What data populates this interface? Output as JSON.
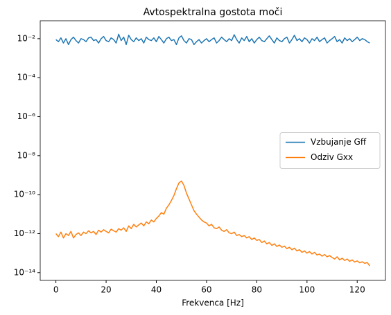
{
  "chart_data": {
    "type": "line",
    "title": "Avtospektralna gostota moči",
    "xlabel": "Frekvenca [Hz]",
    "yscale": "log",
    "legend": "center right",
    "xlim": [
      -6.25,
      131.25
    ],
    "xticks": [
      0,
      20,
      40,
      60,
      80,
      100,
      120
    ],
    "ylim": [
      4e-15,
      0.083
    ],
    "yticks": [
      {
        "value": 1e-14,
        "label": "10⁻¹⁴"
      },
      {
        "value": 1e-12,
        "label": "10⁻¹²"
      },
      {
        "value": 1e-10,
        "label": "10⁻¹⁰"
      },
      {
        "value": 1e-08,
        "label": "10⁻⁸"
      },
      {
        "value": 1e-06,
        "label": "10⁻⁶"
      },
      {
        "value": 0.0001,
        "label": "10⁻⁴"
      },
      {
        "value": 0.01,
        "label": "10⁻²"
      }
    ],
    "x": [
      0,
      1,
      2,
      3,
      4,
      5,
      6,
      7,
      8,
      9,
      10,
      11,
      12,
      13,
      14,
      15,
      16,
      17,
      18,
      19,
      20,
      21,
      22,
      23,
      24,
      25,
      26,
      27,
      28,
      29,
      30,
      31,
      32,
      33,
      34,
      35,
      36,
      37,
      38,
      39,
      40,
      41,
      42,
      43,
      44,
      45,
      46,
      47,
      48,
      49,
      50,
      51,
      52,
      53,
      54,
      55,
      56,
      57,
      58,
      59,
      60,
      61,
      62,
      63,
      64,
      65,
      66,
      67,
      68,
      69,
      70,
      71,
      72,
      73,
      74,
      75,
      76,
      77,
      78,
      79,
      80,
      81,
      82,
      83,
      84,
      85,
      86,
      87,
      88,
      89,
      90,
      91,
      92,
      93,
      94,
      95,
      96,
      97,
      98,
      99,
      100,
      101,
      102,
      103,
      104,
      105,
      106,
      107,
      108,
      109,
      110,
      111,
      112,
      113,
      114,
      115,
      116,
      117,
      118,
      119,
      120,
      121,
      122,
      123,
      124,
      125
    ],
    "series": [
      {
        "name": "Vzbujanje Gff",
        "color": "#1f77b4",
        "values": [
          0.009,
          0.007,
          0.011,
          0.006,
          0.01,
          0.005,
          0.009,
          0.012,
          0.008,
          0.006,
          0.01,
          0.009,
          0.007,
          0.011,
          0.012,
          0.008,
          0.009,
          0.006,
          0.01,
          0.013,
          0.008,
          0.007,
          0.011,
          0.009,
          0.006,
          0.017,
          0.008,
          0.012,
          0.005,
          0.015,
          0.009,
          0.007,
          0.011,
          0.008,
          0.01,
          0.006,
          0.012,
          0.009,
          0.008,
          0.011,
          0.007,
          0.013,
          0.009,
          0.006,
          0.01,
          0.012,
          0.008,
          0.009,
          0.005,
          0.011,
          0.014,
          0.008,
          0.006,
          0.01,
          0.009,
          0.005,
          0.007,
          0.009,
          0.006,
          0.008,
          0.01,
          0.007,
          0.009,
          0.011,
          0.006,
          0.008,
          0.012,
          0.009,
          0.007,
          0.01,
          0.008,
          0.016,
          0.009,
          0.006,
          0.011,
          0.008,
          0.013,
          0.007,
          0.01,
          0.006,
          0.009,
          0.012,
          0.008,
          0.007,
          0.01,
          0.014,
          0.009,
          0.006,
          0.011,
          0.008,
          0.007,
          0.01,
          0.012,
          0.006,
          0.009,
          0.015,
          0.008,
          0.01,
          0.007,
          0.011,
          0.009,
          0.006,
          0.01,
          0.008,
          0.012,
          0.007,
          0.009,
          0.011,
          0.006,
          0.008,
          0.01,
          0.013,
          0.007,
          0.009,
          0.006,
          0.011,
          0.008,
          0.01,
          0.007,
          0.009,
          0.012,
          0.008,
          0.01,
          0.009,
          0.007,
          0.006
        ]
      },
      {
        "name": "Odziv Gxx",
        "color": "#ff7f0e",
        "values": [
          1e-12,
          7e-13,
          1.2e-12,
          6e-13,
          1e-12,
          8e-13,
          1.3e-12,
          6e-13,
          9e-13,
          1.1e-12,
          8e-13,
          1.2e-12,
          1e-12,
          1.4e-12,
          1.1e-12,
          1.3e-12,
          9e-13,
          1.5e-12,
          1.2e-12,
          1.6e-12,
          1.3e-12,
          1.1e-12,
          1.7e-12,
          1.4e-12,
          1.2e-12,
          1.8e-12,
          1.5e-12,
          2e-12,
          1.3e-12,
          2.5e-12,
          1.8e-12,
          3e-12,
          2.2e-12,
          2.8e-12,
          3.5e-12,
          2.5e-12,
          4e-12,
          3.2e-12,
          5e-12,
          4e-12,
          6e-12,
          8e-12,
          1.2e-11,
          1e-11,
          2e-11,
          3e-11,
          5e-11,
          9e-11,
          2e-10,
          4e-10,
          5e-10,
          3e-10,
          1.2e-10,
          6e-11,
          3e-11,
          1.5e-11,
          1e-11,
          7e-12,
          5e-12,
          4e-12,
          3.5e-12,
          2.5e-12,
          3e-12,
          2e-12,
          1.8e-12,
          2.2e-12,
          1.5e-12,
          1.3e-12,
          1.6e-12,
          1.1e-12,
          1e-12,
          1.2e-12,
          8e-13,
          9e-13,
          7e-13,
          8e-13,
          6e-13,
          7e-13,
          5e-13,
          6e-13,
          4.5e-13,
          5e-13,
          3.5e-13,
          4.2e-13,
          3e-13,
          3.5e-13,
          2.5e-13,
          3e-13,
          2.2e-13,
          2.6e-13,
          2e-13,
          2.3e-13,
          1.7e-13,
          2e-13,
          1.5e-13,
          1.8e-13,
          1.3e-13,
          1.5e-13,
          1.1e-13,
          1.3e-13,
          1e-13,
          1.2e-13,
          9e-14,
          1.1e-13,
          8e-14,
          9e-14,
          7e-14,
          8.5e-14,
          6.5e-14,
          7.5e-14,
          6e-14,
          5e-14,
          6.5e-14,
          4.5e-14,
          5.5e-14,
          4.2e-14,
          5e-14,
          3.8e-14,
          4.5e-14,
          3.5e-14,
          4e-14,
          3.2e-14,
          3.6e-14,
          3e-14,
          3.3e-14,
          2.2e-14
        ]
      }
    ]
  }
}
